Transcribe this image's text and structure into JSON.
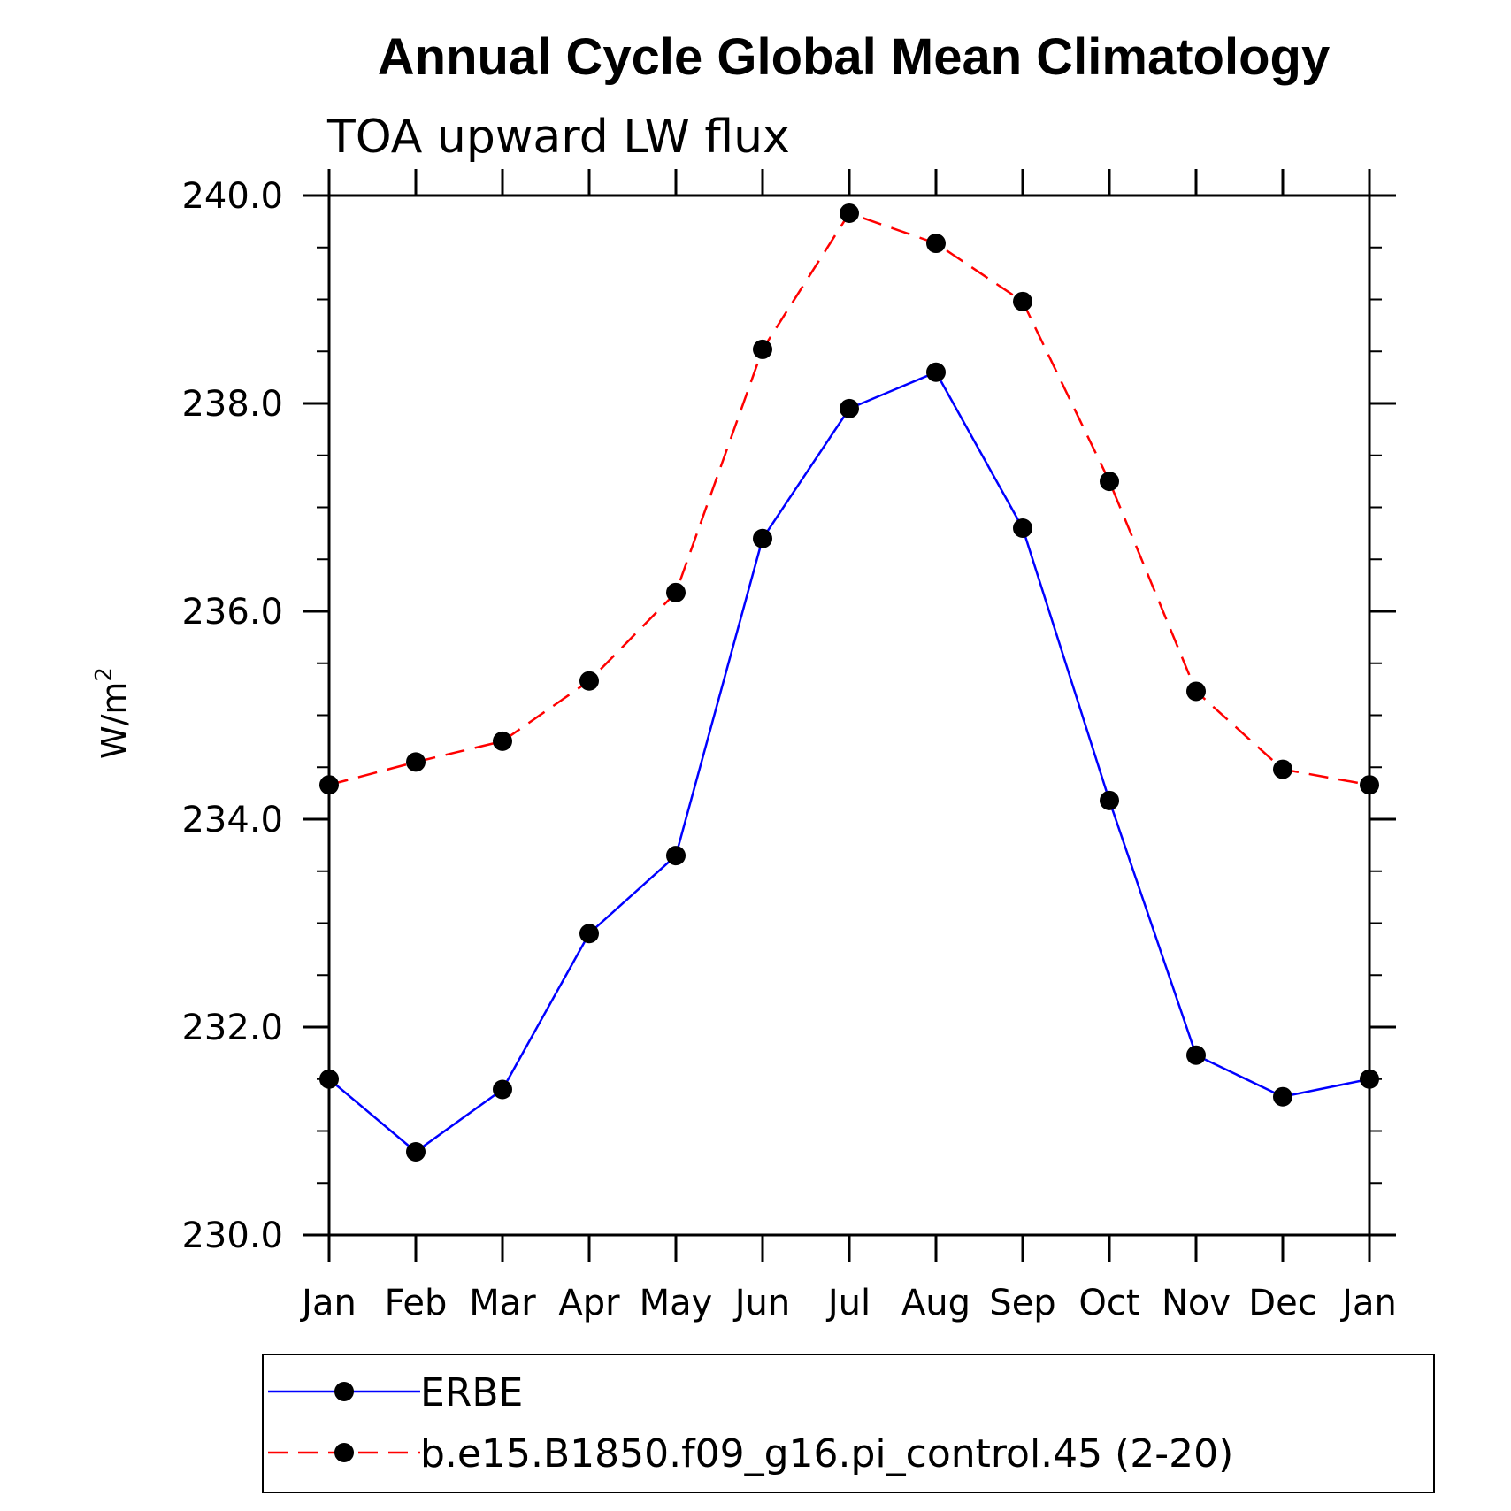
{
  "chart_data": {
    "type": "line",
    "title": "Annual Cycle Global Mean Climatology",
    "subtitle": "TOA upward LW flux",
    "ylabel": "W/m",
    "ylabel_superscript": "2",
    "ylim": [
      230.0,
      240.0
    ],
    "yticks": [
      "230.0",
      "232.0",
      "234.0",
      "236.0",
      "238.0",
      "240.0"
    ],
    "categories": [
      "Jan",
      "Feb",
      "Mar",
      "Apr",
      "May",
      "Jun",
      "Jul",
      "Aug",
      "Sep",
      "Oct",
      "Nov",
      "Dec",
      "Jan"
    ],
    "grid": false,
    "legend_position": "bottom",
    "series": [
      {
        "name": "ERBE",
        "color": "#0000ff",
        "style": "solid",
        "marker": "circle",
        "values": [
          231.5,
          230.8,
          231.4,
          232.9,
          233.65,
          236.7,
          237.95,
          238.3,
          236.8,
          234.18,
          231.73,
          231.33,
          231.5
        ]
      },
      {
        "name": "b.e15.B1850.f09_g16.pi_control.45 (2-20)",
        "color": "#ff0000",
        "style": "dashed",
        "marker": "circle",
        "values": [
          234.33,
          234.55,
          234.75,
          235.33,
          236.18,
          238.52,
          239.83,
          239.54,
          238.98,
          237.25,
          235.23,
          234.48,
          234.33
        ]
      }
    ]
  }
}
